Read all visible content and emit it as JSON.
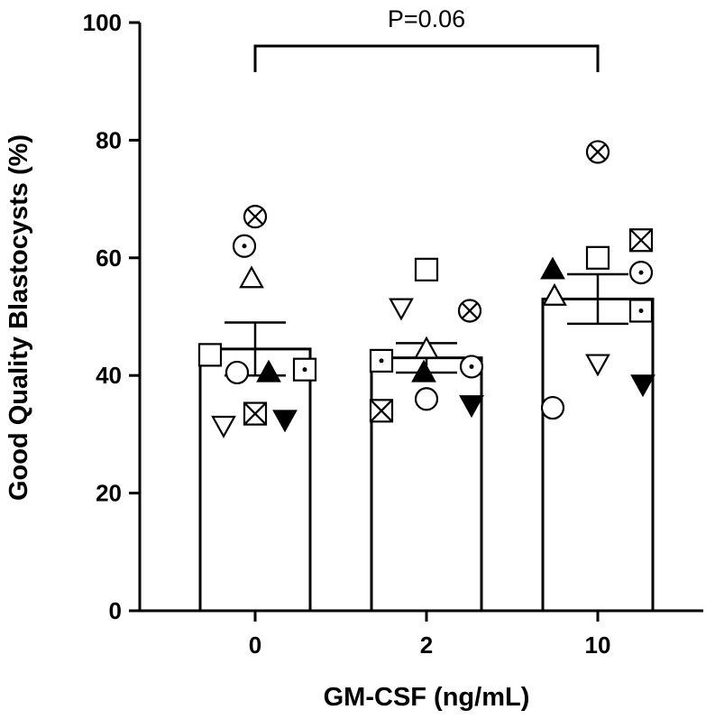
{
  "chart_data": {
    "type": "bar",
    "title": "",
    "xlabel": "GM-CSF (ng/mL)",
    "ylabel": "Good Quality Blastocysts (%)",
    "ylim": [
      0,
      100
    ],
    "yticks": [
      "0",
      "20",
      "40",
      "60",
      "80",
      "100"
    ],
    "categories": [
      "0",
      "2",
      "10"
    ],
    "values": [
      44.5,
      43,
      53
    ],
    "sem": [
      4.5,
      2.5,
      4.2
    ],
    "annotation": {
      "text": "P=0.06",
      "from_category": "0",
      "to_category": "10"
    },
    "points": [
      {
        "category": "0",
        "marker": "circle-x",
        "value": 67
      },
      {
        "category": "0",
        "marker": "circle-dot",
        "value": 62
      },
      {
        "category": "0",
        "marker": "triangle-up-open",
        "value": 56.5
      },
      {
        "category": "0",
        "marker": "square-open",
        "value": 43.5
      },
      {
        "category": "0",
        "marker": "circle-open",
        "value": 40.5
      },
      {
        "category": "0",
        "marker": "triangle-up-filled",
        "value": 40.5
      },
      {
        "category": "0",
        "marker": "square-dot",
        "value": 41
      },
      {
        "category": "0",
        "marker": "square-x",
        "value": 33.5
      },
      {
        "category": "0",
        "marker": "triangle-down-open",
        "value": 31.5
      },
      {
        "category": "0",
        "marker": "triangle-down-filled",
        "value": 32.5
      },
      {
        "category": "2",
        "marker": "square-open",
        "value": 58
      },
      {
        "category": "2",
        "marker": "triangle-down-open",
        "value": 51.5
      },
      {
        "category": "2",
        "marker": "circle-x",
        "value": 51
      },
      {
        "category": "2",
        "marker": "triangle-up-open",
        "value": 44.5
      },
      {
        "category": "2",
        "marker": "square-dot",
        "value": 42.5
      },
      {
        "category": "2",
        "marker": "circle-dot",
        "value": 41.5
      },
      {
        "category": "2",
        "marker": "triangle-up-filled",
        "value": 40.5
      },
      {
        "category": "2",
        "marker": "circle-open",
        "value": 36
      },
      {
        "category": "2",
        "marker": "square-x",
        "value": 34
      },
      {
        "category": "2",
        "marker": "triangle-down-filled",
        "value": 35
      },
      {
        "category": "10",
        "marker": "circle-x",
        "value": 78
      },
      {
        "category": "10",
        "marker": "square-x",
        "value": 63
      },
      {
        "category": "10",
        "marker": "square-open",
        "value": 60
      },
      {
        "category": "10",
        "marker": "triangle-up-filled",
        "value": 58
      },
      {
        "category": "10",
        "marker": "circle-dot",
        "value": 57.5
      },
      {
        "category": "10",
        "marker": "triangle-up-open",
        "value": 53.5
      },
      {
        "category": "10",
        "marker": "square-dot",
        "value": 51
      },
      {
        "category": "10",
        "marker": "triangle-down-open",
        "value": 42
      },
      {
        "category": "10",
        "marker": "triangle-down-filled",
        "value": 38.5
      },
      {
        "category": "10",
        "marker": "circle-open",
        "value": 34.5
      }
    ]
  }
}
